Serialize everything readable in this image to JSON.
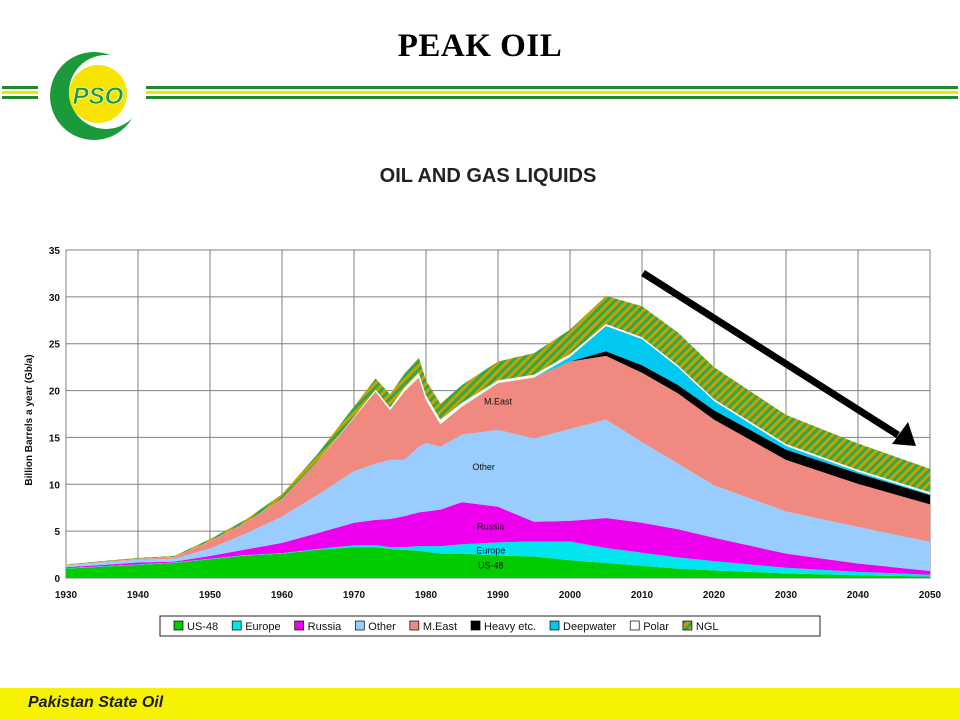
{
  "slide": {
    "title": "PEAK OIL",
    "logo_text": "PSO",
    "footer": "Pakistan State Oil",
    "colors": {
      "band_green": "#1f8a2a",
      "band_yellow": "#f5e600",
      "footer_bg": "#f7f200"
    }
  },
  "chart_data": {
    "type": "area",
    "stacked": true,
    "title": "OIL AND GAS LIQUIDS",
    "xlabel": "",
    "ylabel": "Billion Barrels a year (Gb/a)",
    "xlim": [
      1930,
      2050
    ],
    "ylim": [
      0,
      35
    ],
    "xticks": [
      1930,
      1940,
      1950,
      1960,
      1970,
      1980,
      1990,
      2000,
      2010,
      2020,
      2030,
      2040,
      2050
    ],
    "yticks": [
      0,
      5,
      10,
      15,
      20,
      25,
      30,
      35
    ],
    "grid": true,
    "legend_position": "bottom",
    "x": [
      1930,
      1940,
      1945,
      1950,
      1955,
      1960,
      1965,
      1970,
      1973,
      1975,
      1977,
      1979,
      1980,
      1982,
      1985,
      1990,
      1995,
      2000,
      2005,
      2010,
      2015,
      2020,
      2030,
      2040,
      2050
    ],
    "series": [
      {
        "name": "US-48",
        "color": "#00cc00",
        "values": [
          1.0,
          1.4,
          1.6,
          2.0,
          2.4,
          2.6,
          3.0,
          3.3,
          3.3,
          3.1,
          3.0,
          2.9,
          2.8,
          2.6,
          2.6,
          2.4,
          2.3,
          1.9,
          1.6,
          1.3,
          1.0,
          0.8,
          0.5,
          0.3,
          0.15
        ]
      },
      {
        "name": "Europe",
        "color": "#00e5ee",
        "values": [
          0.05,
          0.05,
          0.05,
          0.05,
          0.05,
          0.05,
          0.1,
          0.2,
          0.2,
          0.2,
          0.3,
          0.5,
          0.6,
          0.8,
          1.0,
          1.4,
          1.6,
          2.0,
          1.6,
          1.4,
          1.2,
          1.0,
          0.6,
          0.35,
          0.2
        ]
      },
      {
        "name": "Russia",
        "color": "#ee00ee",
        "values": [
          0.1,
          0.2,
          0.1,
          0.3,
          0.6,
          1.1,
          1.7,
          2.4,
          2.7,
          3.0,
          3.3,
          3.6,
          3.7,
          3.9,
          4.5,
          3.8,
          2.1,
          2.2,
          3.2,
          3.2,
          3.0,
          2.5,
          1.5,
          0.9,
          0.4
        ]
      },
      {
        "name": "Other",
        "color": "#99ccff",
        "values": [
          0.2,
          0.3,
          0.3,
          0.8,
          1.7,
          2.8,
          4.1,
          5.5,
          6.0,
          6.3,
          6.0,
          7.0,
          7.3,
          6.7,
          7.2,
          8.2,
          8.9,
          9.8,
          10.5,
          8.6,
          7.0,
          5.6,
          4.5,
          3.9,
          3.1
        ]
      },
      {
        "name": "M.East",
        "color": "#f08a80",
        "values": [
          0.05,
          0.1,
          0.2,
          0.8,
          1.2,
          1.9,
          3.6,
          5.7,
          7.7,
          5.3,
          7.3,
          7.4,
          4.6,
          2.4,
          3.0,
          5.0,
          6.5,
          7.2,
          6.8,
          7.4,
          7.5,
          7.0,
          5.5,
          4.6,
          4.0
        ]
      },
      {
        "name": "Heavy etc.",
        "color": "#000000",
        "values": [
          0,
          0,
          0,
          0,
          0,
          0,
          0,
          0,
          0,
          0,
          0,
          0,
          0,
          0,
          0,
          0,
          0,
          0,
          0.5,
          0.8,
          0.9,
          1.0,
          1.1,
          1.1,
          1.0
        ]
      },
      {
        "name": "Deepwater",
        "color": "#00c8f0",
        "values": [
          0,
          0,
          0,
          0,
          0,
          0,
          0,
          0,
          0,
          0,
          0,
          0,
          0,
          0,
          0,
          0,
          0,
          0.5,
          2.7,
          2.8,
          1.9,
          1.0,
          0.4,
          0.2,
          0.1
        ]
      },
      {
        "name": "Polar",
        "color": "#ffffff",
        "values": [
          0,
          0,
          0,
          0,
          0,
          0,
          0,
          0.1,
          0.2,
          0.3,
          0.4,
          0.5,
          0.5,
          0.5,
          0.4,
          0.3,
          0.3,
          0.3,
          0.2,
          0.2,
          0.2,
          0.2,
          0.2,
          0.2,
          0.2
        ]
      },
      {
        "name": "NGL",
        "color": "#c8a000",
        "values": [
          0.05,
          0.1,
          0.1,
          0.2,
          0.3,
          0.5,
          0.8,
          1.1,
          1.2,
          1.4,
          1.5,
          1.6,
          1.6,
          1.7,
          1.9,
          2.0,
          2.3,
          2.6,
          3.0,
          3.3,
          3.5,
          3.4,
          3.1,
          2.8,
          2.5
        ]
      }
    ],
    "annotations": [
      {
        "text": "M.East",
        "x": 1990,
        "y": 18.5
      },
      {
        "text": "Other",
        "x": 1988,
        "y": 11.5
      },
      {
        "text": "Russia",
        "x": 1989,
        "y": 5.2
      },
      {
        "text": "Europe",
        "x": 1989,
        "y": 2.6
      },
      {
        "text": "US-48",
        "x": 1989,
        "y": 1.0
      }
    ]
  }
}
